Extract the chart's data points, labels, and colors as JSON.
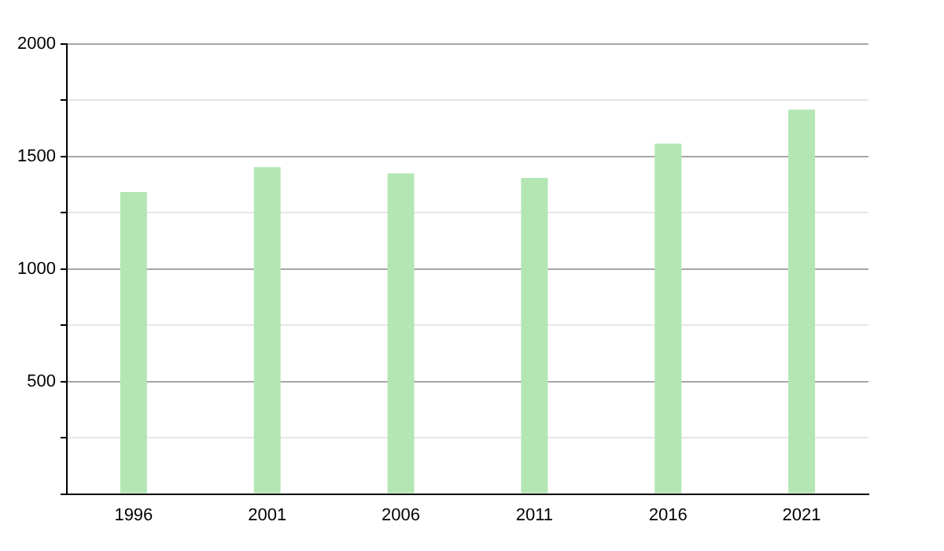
{
  "chart_data": {
    "type": "bar",
    "categories": [
      "1996",
      "2001",
      "2006",
      "2011",
      "2016",
      "2021"
    ],
    "values": [
      1342,
      1453,
      1425,
      1405,
      1557,
      1709
    ],
    "color": "#b3e6b3",
    "ylim": [
      0,
      2000
    ],
    "yticks": [
      {
        "value": 0,
        "label": null
      },
      {
        "value": 250,
        "label": null
      },
      500,
      {
        "value": 750,
        "label": null
      },
      1000,
      {
        "value": 1250,
        "label": null
      },
      1500,
      {
        "value": 1750,
        "label": null
      },
      2000
    ],
    "grid": "y",
    "legend": false
  }
}
